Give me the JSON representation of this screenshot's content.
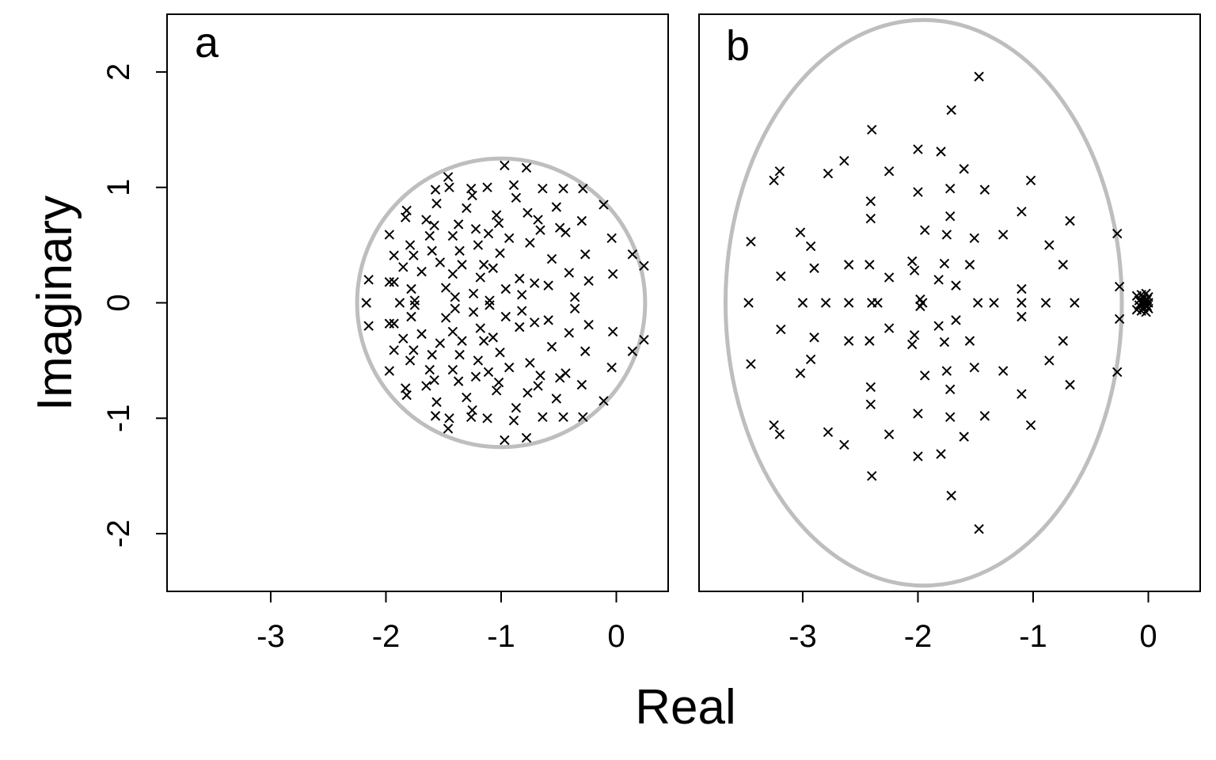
{
  "chart_data": [
    {
      "type": "scatter",
      "panel_label": "a",
      "marker": "x",
      "boundary": {
        "shape": "circle",
        "center": [
          -1.0,
          0.0
        ],
        "radius_x": 1.25,
        "radius_y": 1.25,
        "color": "#bebebe"
      },
      "xlim": [
        -3.9,
        0.45
      ],
      "ylim": [
        -2.5,
        2.5
      ],
      "xticks": [
        "-3",
        "-2",
        "-1",
        "0"
      ],
      "xtick_values": [
        -3,
        -2,
        -1,
        0
      ],
      "yticks": [
        "-2",
        "-1",
        "0",
        "1",
        "2"
      ],
      "ytick_values": [
        -2,
        -1,
        0,
        1,
        2
      ],
      "grid": false,
      "points": [
        [
          -2.15,
          0.2
        ],
        [
          -2.15,
          -0.2
        ],
        [
          -2.17,
          0.0
        ],
        [
          -1.97,
          0.59
        ],
        [
          -1.97,
          -0.59
        ],
        [
          -1.97,
          0.18
        ],
        [
          -1.97,
          -0.18
        ],
        [
          -1.93,
          0.41
        ],
        [
          -1.93,
          -0.41
        ],
        [
          -1.93,
          0.18
        ],
        [
          -1.93,
          -0.18
        ],
        [
          -1.88,
          0.0
        ],
        [
          -1.85,
          0.31
        ],
        [
          -1.85,
          -0.31
        ],
        [
          -1.82,
          0.8
        ],
        [
          -1.82,
          -0.8
        ],
        [
          -1.83,
          0.74
        ],
        [
          -1.83,
          -0.74
        ],
        [
          -1.79,
          0.5
        ],
        [
          -1.79,
          -0.5
        ],
        [
          -1.78,
          0.12
        ],
        [
          -1.78,
          -0.12
        ],
        [
          -1.76,
          0.41
        ],
        [
          -1.76,
          -0.41
        ],
        [
          -1.75,
          0.02
        ],
        [
          -1.75,
          -0.02
        ],
        [
          -1.69,
          0.27
        ],
        [
          -1.69,
          -0.27
        ],
        [
          -1.65,
          0.72
        ],
        [
          -1.65,
          -0.72
        ],
        [
          -1.62,
          0.58
        ],
        [
          -1.62,
          -0.58
        ],
        [
          -1.6,
          0.45
        ],
        [
          -1.6,
          -0.45
        ],
        [
          -1.58,
          0.67
        ],
        [
          -1.58,
          -0.67
        ],
        [
          -1.57,
          0.98
        ],
        [
          -1.57,
          -0.98
        ],
        [
          -1.56,
          0.86
        ],
        [
          -1.56,
          -0.86
        ],
        [
          -1.53,
          0.35
        ],
        [
          -1.53,
          -0.35
        ],
        [
          -1.48,
          0.13
        ],
        [
          -1.48,
          -0.13
        ],
        [
          -1.46,
          1.09
        ],
        [
          -1.46,
          -1.09
        ],
        [
          -1.45,
          1.0
        ],
        [
          -1.45,
          -1.0
        ],
        [
          -1.42,
          0.58
        ],
        [
          -1.42,
          -0.58
        ],
        [
          -1.42,
          0.25
        ],
        [
          -1.42,
          -0.25
        ],
        [
          -1.4,
          0.05
        ],
        [
          -1.4,
          -0.05
        ],
        [
          -1.37,
          0.68
        ],
        [
          -1.37,
          -0.68
        ],
        [
          -1.36,
          0.45
        ],
        [
          -1.36,
          -0.45
        ],
        [
          -1.34,
          0.33
        ],
        [
          -1.34,
          -0.33
        ],
        [
          -1.3,
          0.82
        ],
        [
          -1.3,
          -0.82
        ],
        [
          -1.26,
          0.99
        ],
        [
          -1.26,
          -0.99
        ],
        [
          -1.25,
          0.93
        ],
        [
          -1.25,
          -0.93
        ],
        [
          -1.24,
          0.08
        ],
        [
          -1.24,
          -0.08
        ],
        [
          -1.22,
          0.64
        ],
        [
          -1.22,
          -0.64
        ],
        [
          -1.2,
          0.5
        ],
        [
          -1.2,
          -0.5
        ],
        [
          -1.18,
          0.22
        ],
        [
          -1.18,
          -0.22
        ],
        [
          -1.15,
          0.33
        ],
        [
          -1.15,
          -0.33
        ],
        [
          -1.12,
          1.0
        ],
        [
          -1.12,
          -1.0
        ],
        [
          -1.11,
          0.6
        ],
        [
          -1.11,
          -0.6
        ],
        [
          -1.1,
          0.02
        ],
        [
          -1.1,
          -0.02
        ],
        [
          -1.07,
          0.3
        ],
        [
          -1.07,
          -0.3
        ],
        [
          -1.04,
          0.76
        ],
        [
          -1.04,
          -0.76
        ],
        [
          -1.02,
          0.69
        ],
        [
          -1.02,
          -0.69
        ],
        [
          -1.01,
          0.43
        ],
        [
          -1.01,
          -0.43
        ],
        [
          -0.97,
          1.19
        ],
        [
          -0.97,
          -1.19
        ],
        [
          -0.96,
          0.12
        ],
        [
          -0.96,
          -0.12
        ],
        [
          -0.93,
          0.56
        ],
        [
          -0.93,
          -0.56
        ],
        [
          -0.89,
          1.02
        ],
        [
          -0.89,
          -1.02
        ],
        [
          -0.87,
          0.91
        ],
        [
          -0.87,
          -0.91
        ],
        [
          -0.84,
          0.21
        ],
        [
          -0.84,
          -0.21
        ],
        [
          -0.82,
          0.07
        ],
        [
          -0.82,
          -0.07
        ],
        [
          -0.78,
          1.17
        ],
        [
          -0.78,
          -1.17
        ],
        [
          -0.77,
          0.78
        ],
        [
          -0.77,
          -0.78
        ],
        [
          -0.75,
          0.52
        ],
        [
          -0.75,
          -0.52
        ],
        [
          -0.71,
          0.17
        ],
        [
          -0.71,
          -0.17
        ],
        [
          -0.68,
          0.72
        ],
        [
          -0.68,
          -0.72
        ],
        [
          -0.66,
          0.63
        ],
        [
          -0.66,
          -0.63
        ],
        [
          -0.64,
          0.99
        ],
        [
          -0.64,
          -0.99
        ],
        [
          -0.59,
          0.15
        ],
        [
          -0.59,
          -0.15
        ],
        [
          -0.56,
          0.38
        ],
        [
          -0.56,
          -0.38
        ],
        [
          -0.52,
          0.83
        ],
        [
          -0.52,
          -0.83
        ],
        [
          -0.49,
          0.65
        ],
        [
          -0.49,
          -0.65
        ],
        [
          -0.46,
          0.99
        ],
        [
          -0.46,
          -0.99
        ],
        [
          -0.44,
          0.61
        ],
        [
          -0.44,
          -0.61
        ],
        [
          -0.41,
          0.26
        ],
        [
          -0.41,
          -0.26
        ],
        [
          -0.36,
          0.05
        ],
        [
          -0.36,
          -0.05
        ],
        [
          -0.3,
          0.71
        ],
        [
          -0.3,
          -0.71
        ],
        [
          -0.29,
          0.99
        ],
        [
          -0.29,
          -0.99
        ],
        [
          -0.27,
          0.42
        ],
        [
          -0.27,
          -0.42
        ],
        [
          -0.24,
          0.19
        ],
        [
          -0.24,
          -0.19
        ],
        [
          -0.11,
          0.85
        ],
        [
          -0.11,
          -0.85
        ],
        [
          -0.04,
          0.56
        ],
        [
          -0.04,
          -0.56
        ],
        [
          -0.03,
          0.25
        ],
        [
          -0.03,
          -0.25
        ],
        [
          0.14,
          0.42
        ],
        [
          0.14,
          -0.42
        ],
        [
          0.24,
          0.32
        ],
        [
          0.24,
          -0.32
        ]
      ]
    },
    {
      "type": "scatter",
      "panel_label": "b",
      "marker": "x",
      "boundary": {
        "shape": "ellipse",
        "center": [
          -1.95,
          0.0
        ],
        "radius_x": 1.72,
        "radius_y": 2.45,
        "color": "#bebebe"
      },
      "xlim": [
        -3.9,
        0.45
      ],
      "ylim": [
        -2.5,
        2.5
      ],
      "xticks": [
        "-3",
        "-2",
        "-1",
        "0"
      ],
      "xtick_values": [
        -3,
        -2,
        -1,
        0
      ],
      "grid": false,
      "points": [
        [
          -3.45,
          0.53
        ],
        [
          -3.45,
          -0.53
        ],
        [
          -3.47,
          0.0
        ],
        [
          -3.25,
          1.06
        ],
        [
          -3.25,
          -1.06
        ],
        [
          -3.2,
          1.14
        ],
        [
          -3.2,
          -1.14
        ],
        [
          -3.19,
          0.23
        ],
        [
          -3.19,
          -0.23
        ],
        [
          -3.02,
          0.61
        ],
        [
          -3.02,
          -0.61
        ],
        [
          -3.0,
          0.0
        ],
        [
          -2.93,
          0.49
        ],
        [
          -2.93,
          -0.49
        ],
        [
          -2.9,
          0.3
        ],
        [
          -2.9,
          -0.3
        ],
        [
          -2.8,
          0.0
        ],
        [
          -2.78,
          1.12
        ],
        [
          -2.78,
          -1.12
        ],
        [
          -2.64,
          1.23
        ],
        [
          -2.64,
          -1.23
        ],
        [
          -2.6,
          0.33
        ],
        [
          -2.6,
          -0.33
        ],
        [
          -2.6,
          0.0
        ],
        [
          -2.4,
          1.5
        ],
        [
          -2.4,
          -1.5
        ],
        [
          -2.41,
          0.88
        ],
        [
          -2.41,
          -0.88
        ],
        [
          -2.41,
          0.73
        ],
        [
          -2.41,
          -0.73
        ],
        [
          -2.42,
          0.33
        ],
        [
          -2.42,
          -0.33
        ],
        [
          -2.4,
          0.0
        ],
        [
          -2.35,
          0.0
        ],
        [
          -2.25,
          0.22
        ],
        [
          -2.25,
          -0.22
        ],
        [
          -2.25,
          1.14
        ],
        [
          -2.25,
          -1.14
        ],
        [
          -2.05,
          0.36
        ],
        [
          -2.05,
          -0.36
        ],
        [
          -2.03,
          0.28
        ],
        [
          -2.03,
          -0.28
        ],
        [
          -2.0,
          1.33
        ],
        [
          -2.0,
          -1.33
        ],
        [
          -2.0,
          0.96
        ],
        [
          -2.0,
          -0.96
        ],
        [
          -1.98,
          0.03
        ],
        [
          -1.98,
          -0.03
        ],
        [
          -1.96,
          0.0
        ],
        [
          -1.94,
          0.63
        ],
        [
          -1.94,
          -0.63
        ],
        [
          -1.8,
          1.31
        ],
        [
          -1.8,
          -1.31
        ],
        [
          -1.82,
          0.2
        ],
        [
          -1.82,
          -0.2
        ],
        [
          -1.77,
          0.34
        ],
        [
          -1.77,
          -0.34
        ],
        [
          -1.75,
          0.59
        ],
        [
          -1.75,
          -0.59
        ],
        [
          -1.71,
          1.67
        ],
        [
          -1.71,
          -1.67
        ],
        [
          -1.72,
          0.99
        ],
        [
          -1.72,
          -0.99
        ],
        [
          -1.72,
          0.75
        ],
        [
          -1.72,
          -0.75
        ],
        [
          -1.67,
          0.15
        ],
        [
          -1.67,
          -0.15
        ],
        [
          -1.6,
          1.16
        ],
        [
          -1.6,
          -1.16
        ],
        [
          -1.55,
          0.33
        ],
        [
          -1.55,
          -0.33
        ],
        [
          -1.51,
          0.56
        ],
        [
          -1.51,
          -0.56
        ],
        [
          -1.47,
          1.96
        ],
        [
          -1.47,
          -1.96
        ],
        [
          -1.42,
          0.98
        ],
        [
          -1.42,
          -0.98
        ],
        [
          -1.48,
          0.0
        ],
        [
          -1.34,
          0.0
        ],
        [
          -1.26,
          0.59
        ],
        [
          -1.26,
          -0.59
        ],
        [
          -1.1,
          0.79
        ],
        [
          -1.1,
          -0.79
        ],
        [
          -1.1,
          0.12
        ],
        [
          -1.1,
          -0.12
        ],
        [
          -1.1,
          0.0
        ],
        [
          -1.02,
          1.06
        ],
        [
          -1.02,
          -1.06
        ],
        [
          -0.89,
          0.0
        ],
        [
          -0.86,
          0.5
        ],
        [
          -0.86,
          -0.5
        ],
        [
          -0.74,
          0.33
        ],
        [
          -0.74,
          -0.33
        ],
        [
          -0.68,
          0.71
        ],
        [
          -0.68,
          -0.71
        ],
        [
          -0.64,
          0.0
        ],
        [
          -0.27,
          0.6
        ],
        [
          -0.27,
          -0.6
        ],
        [
          -0.25,
          0.14
        ],
        [
          -0.25,
          -0.14
        ],
        [
          -0.1,
          0.06
        ],
        [
          -0.1,
          -0.06
        ],
        [
          -0.08,
          0.02
        ],
        [
          -0.08,
          -0.02
        ],
        [
          -0.06,
          0.07
        ],
        [
          -0.06,
          -0.07
        ],
        [
          -0.05,
          0.0
        ],
        [
          -0.04,
          0.04
        ],
        [
          -0.04,
          -0.04
        ],
        [
          -0.03,
          0.01
        ],
        [
          -0.03,
          -0.01
        ],
        [
          -0.02,
          0.08
        ],
        [
          -0.02,
          -0.08
        ],
        [
          -0.01,
          0.03
        ],
        [
          -0.01,
          -0.03
        ],
        [
          0.0,
          0.05
        ],
        [
          0.0,
          -0.05
        ],
        [
          0.0,
          0.0
        ]
      ]
    }
  ],
  "axes": {
    "xlabel": "Real",
    "ylabel": "Imaginary"
  }
}
